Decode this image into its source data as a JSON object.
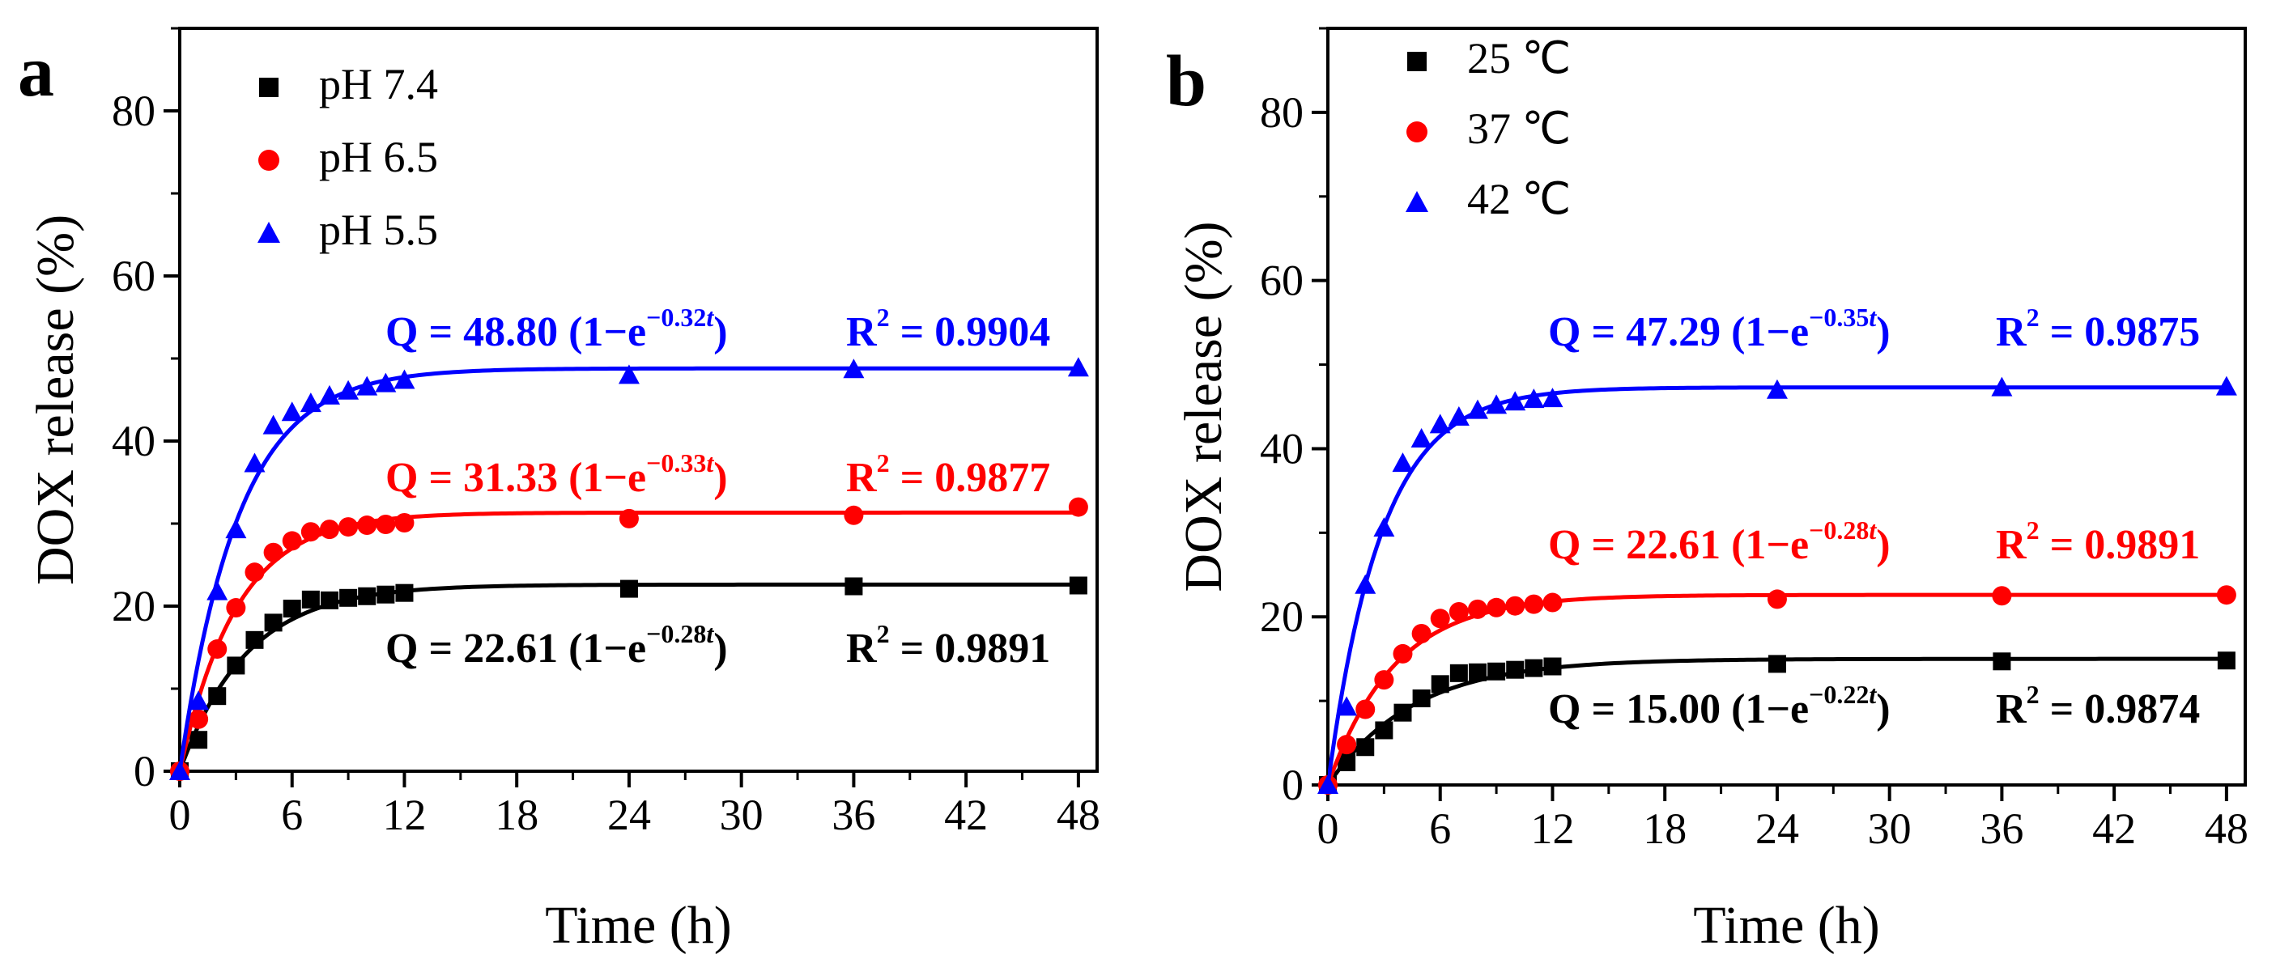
{
  "chart_data": [
    {
      "panel": "a",
      "type": "scatter",
      "xlabel": "Time (h)",
      "ylabel": "DOX release (%)",
      "xlim": [
        0,
        49
      ],
      "ylim": [
        0,
        90
      ],
      "xticks": [
        0,
        6,
        12,
        18,
        24,
        30,
        36,
        42,
        48
      ],
      "yticks": [
        0,
        20,
        40,
        60,
        80
      ],
      "legend": {
        "placement": "top-left"
      },
      "series": [
        {
          "name": "pH 7.4",
          "marker": "square",
          "color": "#000000",
          "fit": {
            "Q_max": 22.61,
            "k": 0.28,
            "r2": 0.9891
          },
          "fit_label": {
            "left": "Q = 22.61 (1−e",
            "exponent": "−0.28",
            "var": "t",
            "right": ")",
            "r2_label": "R",
            "r2_sup": "2",
            "r2_text": " = 0.9891"
          },
          "points": [
            [
              0,
              0
            ],
            [
              1,
              3.8
            ],
            [
              2,
              9.1
            ],
            [
              3,
              12.8
            ],
            [
              4,
              15.9
            ],
            [
              5,
              18.0
            ],
            [
              6,
              19.7
            ],
            [
              7,
              20.8
            ],
            [
              8,
              20.7
            ],
            [
              9,
              21.0
            ],
            [
              10,
              21.2
            ],
            [
              11,
              21.4
            ],
            [
              12,
              21.6
            ],
            [
              24,
              22.1
            ],
            [
              36,
              22.4
            ],
            [
              48,
              22.5
            ]
          ]
        },
        {
          "name": "pH 6.5",
          "marker": "circle",
          "color": "#ff0000",
          "fit": {
            "Q_max": 31.33,
            "k": 0.33,
            "r2": 0.9877
          },
          "fit_label": {
            "left": "Q = 31.33 (1−e",
            "exponent": "−0.33",
            "var": "t",
            "right": ")",
            "r2_label": "R",
            "r2_sup": "2",
            "r2_text": " = 0.9877"
          },
          "points": [
            [
              0,
              0
            ],
            [
              1,
              6.3
            ],
            [
              2,
              14.8
            ],
            [
              3,
              19.8
            ],
            [
              4,
              24.1
            ],
            [
              5,
              26.5
            ],
            [
              6,
              27.9
            ],
            [
              7,
              29.0
            ],
            [
              8,
              29.3
            ],
            [
              9,
              29.6
            ],
            [
              10,
              29.8
            ],
            [
              11,
              29.9
            ],
            [
              12,
              30.1
            ],
            [
              24,
              30.6
            ],
            [
              36,
              31.0
            ],
            [
              48,
              32.0
            ]
          ]
        },
        {
          "name": "pH 5.5",
          "marker": "triangle",
          "color": "#0000ff",
          "fit": {
            "Q_max": 48.8,
            "k": 0.32,
            "r2": 0.9904
          },
          "fit_label": {
            "left": "Q = 48.80 (1−e",
            "exponent": "−0.32",
            "var": "t",
            "right": ")",
            "r2_label": "R",
            "r2_sup": "2",
            "r2_text": " = 0.9904"
          },
          "points": [
            [
              0,
              0
            ],
            [
              1,
              8.5
            ],
            [
              2,
              21.8
            ],
            [
              3,
              29.3
            ],
            [
              4,
              37.3
            ],
            [
              5,
              41.9
            ],
            [
              6,
              43.5
            ],
            [
              7,
              44.6
            ],
            [
              8,
              45.5
            ],
            [
              9,
              46.1
            ],
            [
              10,
              46.6
            ],
            [
              11,
              47.0
            ],
            [
              12,
              47.4
            ],
            [
              24,
              48.0
            ],
            [
              36,
              48.7
            ],
            [
              48,
              48.9
            ]
          ]
        }
      ]
    },
    {
      "panel": "b",
      "type": "scatter",
      "xlabel": "Time (h)",
      "ylabel": "DOX release (%)",
      "xlim": [
        0,
        49
      ],
      "ylim": [
        0,
        90
      ],
      "xticks": [
        0,
        6,
        12,
        18,
        24,
        30,
        36,
        42,
        48
      ],
      "yticks": [
        0,
        20,
        40,
        60,
        80
      ],
      "legend": {
        "placement": "top-left"
      },
      "series": [
        {
          "name": "25 ℃",
          "marker": "square",
          "color": "#000000",
          "fit": {
            "Q_max": 15.0,
            "k": 0.22,
            "r2": 0.9874
          },
          "fit_label": {
            "left": "Q = 15.00 (1−e",
            "exponent": "−0.22",
            "var": "t",
            "right": ")",
            "r2_label": "R",
            "r2_sup": "2",
            "r2_text": " = 0.9874"
          },
          "points": [
            [
              0,
              0
            ],
            [
              1,
              2.7
            ],
            [
              2,
              4.5
            ],
            [
              3,
              6.5
            ],
            [
              4,
              8.6
            ],
            [
              5,
              10.3
            ],
            [
              6,
              12.0
            ],
            [
              7,
              13.3
            ],
            [
              8,
              13.4
            ],
            [
              9,
              13.5
            ],
            [
              10,
              13.7
            ],
            [
              11,
              13.9
            ],
            [
              12,
              14.1
            ],
            [
              24,
              14.4
            ],
            [
              36,
              14.7
            ],
            [
              48,
              14.8
            ]
          ]
        },
        {
          "name": "37 ℃",
          "marker": "circle",
          "color": "#ff0000",
          "fit": {
            "Q_max": 22.61,
            "k": 0.28,
            "r2": 0.9891
          },
          "fit_label": {
            "left": "Q = 22.61 (1−e",
            "exponent": "−0.28",
            "var": "t",
            "right": ")",
            "r2_label": "R",
            "r2_sup": "2",
            "r2_text": " = 0.9891"
          },
          "points": [
            [
              0,
              0
            ],
            [
              1,
              4.8
            ],
            [
              2,
              9.0
            ],
            [
              3,
              12.5
            ],
            [
              4,
              15.6
            ],
            [
              5,
              18.0
            ],
            [
              6,
              19.8
            ],
            [
              7,
              20.6
            ],
            [
              8,
              20.9
            ],
            [
              9,
              21.1
            ],
            [
              10,
              21.3
            ],
            [
              11,
              21.5
            ],
            [
              12,
              21.7
            ],
            [
              24,
              22.1
            ],
            [
              36,
              22.5
            ],
            [
              48,
              22.6
            ]
          ]
        },
        {
          "name": "42 ℃",
          "marker": "triangle",
          "color": "#0000ff",
          "fit": {
            "Q_max": 47.29,
            "k": 0.35,
            "r2": 0.9875
          },
          "fit_label": {
            "left": "Q = 47.29 (1−e",
            "exponent": "−0.35",
            "var": "t",
            "right": ")",
            "r2_label": "R",
            "r2_sup": "2",
            "r2_text": " = 0.9875"
          },
          "points": [
            [
              0,
              0
            ],
            [
              1,
              9.3
            ],
            [
              2,
              23.8
            ],
            [
              3,
              30.6
            ],
            [
              4,
              38.3
            ],
            [
              5,
              41.2
            ],
            [
              6,
              42.9
            ],
            [
              7,
              43.8
            ],
            [
              8,
              44.6
            ],
            [
              9,
              45.2
            ],
            [
              10,
              45.6
            ],
            [
              11,
              45.9
            ],
            [
              12,
              46.0
            ],
            [
              24,
              47.0
            ],
            [
              36,
              47.3
            ],
            [
              48,
              47.4
            ]
          ]
        }
      ]
    }
  ]
}
